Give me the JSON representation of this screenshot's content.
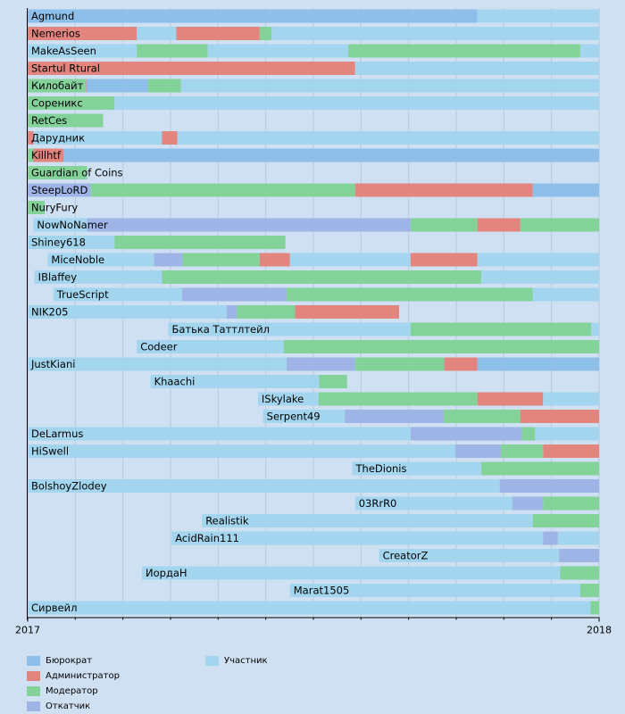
{
  "chart_data": {
    "type": "timeline",
    "x_ticks": [
      "2017",
      "2018"
    ],
    "colors": {
      "bureaucrat": "#8ebfeb",
      "admin": "#e3857f",
      "moderator": "#82d29a",
      "rollbacker": "#9fb4e6",
      "participant": "#a3d6ee"
    },
    "legend": [
      {
        "key": "bureaucrat",
        "label": "Бюрократ"
      },
      {
        "key": "admin",
        "label": "Администратор"
      },
      {
        "key": "moderator",
        "label": "Модератор"
      },
      {
        "key": "rollbacker",
        "label": "Откатчик"
      },
      {
        "key": "participant",
        "label": "Участник"
      }
    ],
    "rows": [
      {
        "name": "Agmund",
        "segments": [
          [
            "bureaucrat",
            0.0,
            0.787
          ],
          [
            "participant",
            0.787,
            1.0
          ]
        ]
      },
      {
        "name": "Nemerios",
        "segments": [
          [
            "admin",
            0.0,
            0.191
          ],
          [
            "participant",
            0.191,
            0.26
          ],
          [
            "admin",
            0.26,
            0.406
          ],
          [
            "moderator",
            0.406,
            0.427
          ],
          [
            "participant",
            0.427,
            1.0
          ]
        ]
      },
      {
        "name": "MakeAsSeen",
        "segments": [
          [
            "participant",
            0.0,
            0.191
          ],
          [
            "moderator",
            0.191,
            0.315
          ],
          [
            "participant",
            0.315,
            0.561
          ],
          [
            "moderator",
            0.561,
            0.967
          ],
          [
            "participant",
            0.967,
            1.0
          ]
        ]
      },
      {
        "name": "Startul Rtural",
        "segments": [
          [
            "admin",
            0.0,
            0.573
          ],
          [
            "participant",
            0.573,
            1.0
          ]
        ]
      },
      {
        "name": "Килобайт",
        "segments": [
          [
            "moderator",
            0.0,
            0.102
          ],
          [
            "admin",
            0.102,
            0.103
          ],
          [
            "bureaucrat",
            0.103,
            0.21
          ],
          [
            "moderator",
            0.21,
            0.268
          ],
          [
            "participant",
            0.268,
            1.0
          ]
        ]
      },
      {
        "name": "Сорeникс",
        "segments": [
          [
            "moderator",
            0.0,
            0.152
          ],
          [
            "participant",
            0.152,
            1.0
          ]
        ]
      },
      {
        "name": "RetCes",
        "segments": [
          [
            "moderator",
            0.0,
            0.132
          ]
        ]
      },
      {
        "name": "Дарудник",
        "segments": [
          [
            "admin",
            0.0,
            0.01
          ],
          [
            "participant",
            0.01,
            0.235
          ],
          [
            "admin",
            0.235,
            0.262
          ],
          [
            "participant",
            0.262,
            1.0
          ]
        ]
      },
      {
        "name": "Killhtf",
        "segments": [
          [
            "moderator",
            0.0,
            0.01
          ],
          [
            "admin",
            0.01,
            0.063
          ],
          [
            "bureaucrat",
            0.063,
            1.0
          ]
        ]
      },
      {
        "name": "Guardian of Coins",
        "segments": [
          [
            "moderator",
            0.0,
            0.104
          ]
        ]
      },
      {
        "name": "SteepLoRD",
        "segments": [
          [
            "rollbacker",
            0.0,
            0.11
          ],
          [
            "moderator",
            0.11,
            0.573
          ],
          [
            "admin",
            0.573,
            0.884
          ],
          [
            "bureaucrat",
            0.884,
            1.0
          ]
        ]
      },
      {
        "name": "NuryFury",
        "segments": [
          [
            "moderator",
            0.0,
            0.03
          ]
        ]
      },
      {
        "name": "NowNoNamer",
        "segments": [
          [
            "participant",
            0.01,
            0.104
          ],
          [
            "rollbacker",
            0.104,
            0.67
          ],
          [
            "moderator",
            0.67,
            0.787
          ],
          [
            "admin",
            0.787,
            0.862
          ],
          [
            "moderator",
            0.862,
            1.0
          ]
        ]
      },
      {
        "name": "Shiney618",
        "segments": [
          [
            "participant",
            0.0,
            0.152
          ],
          [
            "moderator",
            0.152,
            0.451
          ]
        ]
      },
      {
        "name": "MiceNoble",
        "segments": [
          [
            "participant",
            0.035,
            0.221
          ],
          [
            "rollbacker",
            0.221,
            0.271
          ],
          [
            "moderator",
            0.271,
            0.406
          ],
          [
            "admin",
            0.406,
            0.459
          ],
          [
            "participant",
            0.459,
            0.67
          ],
          [
            "admin",
            0.67,
            0.787
          ],
          [
            "participant",
            0.787,
            1.0
          ]
        ]
      },
      {
        "name": "IBlaffey",
        "segments": [
          [
            "participant",
            0.012,
            0.235
          ],
          [
            "moderator",
            0.235,
            0.794
          ],
          [
            "participant",
            0.794,
            1.0
          ]
        ]
      },
      {
        "name": "TrueScript",
        "segments": [
          [
            "participant",
            0.045,
            0.27
          ],
          [
            "rollbacker",
            0.27,
            0.453
          ],
          [
            "moderator",
            0.453,
            0.884
          ],
          [
            "participant",
            0.884,
            1.0
          ]
        ]
      },
      {
        "name": "NIK205",
        "segments": [
          [
            "participant",
            0.0,
            0.348
          ],
          [
            "rollbacker",
            0.348,
            0.366
          ],
          [
            "moderator",
            0.366,
            0.468
          ],
          [
            "admin",
            0.468,
            0.65
          ]
        ]
      },
      {
        "name": "Батька Таттлтейл",
        "segments": [
          [
            "participant",
            0.246,
            0.67
          ],
          [
            "moderator",
            0.67,
            0.986
          ],
          [
            "participant",
            0.986,
            1.0
          ]
        ]
      },
      {
        "name": "Codeer",
        "segments": [
          [
            "participant",
            0.191,
            0.448
          ],
          [
            "moderator",
            0.448,
            1.0
          ]
        ]
      },
      {
        "name": "JustKiani",
        "segments": [
          [
            "participant",
            0.0,
            0.453
          ],
          [
            "rollbacker",
            0.453,
            0.573
          ],
          [
            "moderator",
            0.573,
            0.729
          ],
          [
            "admin",
            0.729,
            0.787
          ],
          [
            "bureaucrat",
            0.787,
            1.0
          ]
        ]
      },
      {
        "name": "Khaachi",
        "segments": [
          [
            "participant",
            0.215,
            0.51
          ],
          [
            "moderator",
            0.51,
            0.559
          ]
        ]
      },
      {
        "name": "ISkylake",
        "segments": [
          [
            "participant",
            0.403,
            0.509
          ],
          [
            "moderator",
            0.509,
            0.787
          ],
          [
            "admin",
            0.787,
            0.902
          ],
          [
            "participant",
            0.902,
            1.0
          ]
        ]
      },
      {
        "name": "Serpent49",
        "segments": [
          [
            "participant",
            0.412,
            0.555
          ],
          [
            "rollbacker",
            0.555,
            0.728
          ],
          [
            "moderator",
            0.728,
            0.862
          ],
          [
            "admin",
            0.862,
            1.0
          ]
        ]
      },
      {
        "name": "DeLarmus",
        "segments": [
          [
            "participant",
            0.0,
            0.67
          ],
          [
            "rollbacker",
            0.67,
            0.865
          ],
          [
            "moderator",
            0.865,
            0.888
          ],
          [
            "participant",
            0.888,
            1.0
          ]
        ]
      },
      {
        "name": "HiSwell",
        "segments": [
          [
            "participant",
            0.0,
            0.748
          ],
          [
            "rollbacker",
            0.748,
            0.828
          ],
          [
            "moderator",
            0.828,
            0.902
          ],
          [
            "admin",
            0.902,
            1.0
          ]
        ]
      },
      {
        "name": "TheDionis",
        "segments": [
          [
            "participant",
            0.568,
            0.794
          ],
          [
            "moderator",
            0.794,
            1.0
          ]
        ]
      },
      {
        "name": "BolshoyZlodey",
        "segments": [
          [
            "participant",
            0.0,
            0.826
          ],
          [
            "rollbacker",
            0.826,
            1.0
          ]
        ]
      },
      {
        "name": "03RrR0",
        "segments": [
          [
            "participant",
            0.573,
            0.848
          ],
          [
            "rollbacker",
            0.848,
            0.902
          ],
          [
            "moderator",
            0.902,
            1.0
          ]
        ]
      },
      {
        "name": "Realistik",
        "segments": [
          [
            "participant",
            0.305,
            0.884
          ],
          [
            "moderator",
            0.884,
            1.0
          ]
        ]
      },
      {
        "name": "AcidRain111",
        "segments": [
          [
            "participant",
            0.252,
            0.902
          ],
          [
            "rollbacker",
            0.902,
            0.928
          ],
          [
            "participant",
            0.928,
            1.0
          ]
        ]
      },
      {
        "name": "CreatorZ",
        "segments": [
          [
            "participant",
            0.615,
            0.93
          ],
          [
            "rollbacker",
            0.93,
            1.0
          ]
        ]
      },
      {
        "name": "ИордаН",
        "segments": [
          [
            "participant",
            0.2,
            0.932
          ],
          [
            "moderator",
            0.932,
            1.0
          ]
        ]
      },
      {
        "name": "Marat1505",
        "segments": [
          [
            "participant",
            0.459,
            0.967
          ],
          [
            "moderator",
            0.967,
            1.0
          ]
        ]
      },
      {
        "name": "Сирвейл",
        "segments": [
          [
            "participant",
            0.0,
            0.985
          ],
          [
            "moderator",
            0.985,
            1.0
          ]
        ]
      }
    ]
  }
}
